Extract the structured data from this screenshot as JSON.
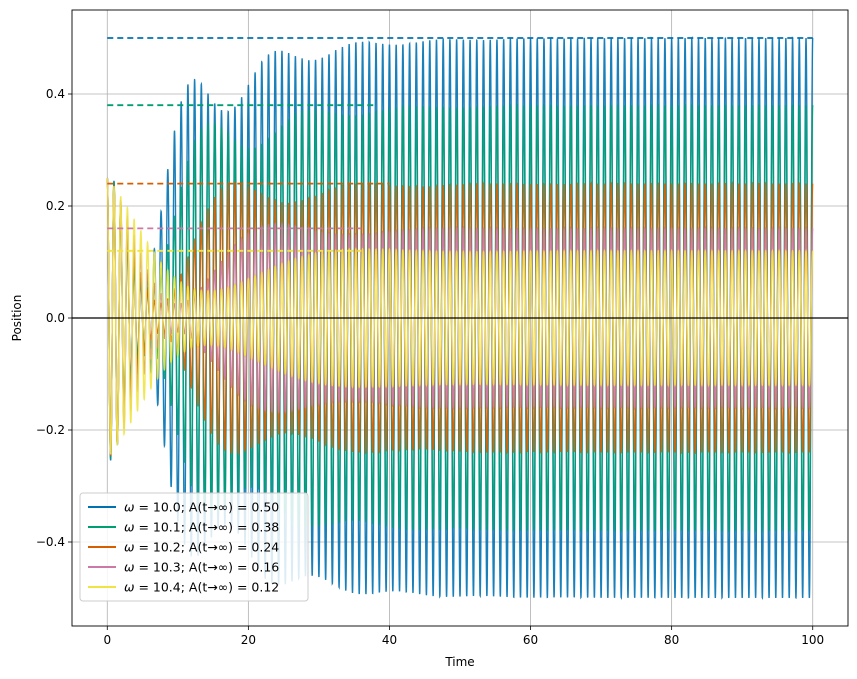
{
  "chart_data": {
    "type": "line",
    "title": "",
    "xlabel": "Time",
    "ylabel": "Position",
    "xlim": [
      -5,
      105
    ],
    "ylim": [
      -0.55,
      0.55
    ],
    "x_ticks": [
      0,
      20,
      40,
      60,
      80,
      100
    ],
    "y_ticks": [
      -0.4,
      -0.2,
      0.0,
      0.2,
      0.4
    ],
    "x_tick_labels": [
      "0",
      "20",
      "40",
      "60",
      "80",
      "100"
    ],
    "y_tick_labels": [
      "−0.4",
      "−0.2",
      "0.0",
      "0.2",
      "0.4"
    ],
    "grid": true,
    "zero_line": 0.0,
    "legend_position": "lower-left",
    "time_range": [
      0,
      100
    ],
    "initial_value": 0.25,
    "transient_damping_rate": 0.1,
    "display_frequency": 1.05,
    "series": [
      {
        "omega": "10.0",
        "legend_label": "= 10.0; A(t→∞) = 0.50",
        "steady_amplitude": 0.5,
        "color": "#0072b2",
        "dashed_level_end": 100
      },
      {
        "omega": "10.1",
        "legend_label": "= 10.1; A(t→∞) = 0.38",
        "steady_amplitude": 0.38,
        "color": "#009e73",
        "dashed_level_end": 38
      },
      {
        "omega": "10.2",
        "legend_label": "= 10.2; A(t→∞) = 0.24",
        "steady_amplitude": 0.24,
        "color": "#d55e00",
        "dashed_level_end": 40
      },
      {
        "omega": "10.3",
        "legend_label": "= 10.3; A(t→∞) = 0.16",
        "steady_amplitude": 0.16,
        "color": "#cc79a7",
        "dashed_level_end": 36
      },
      {
        "omega": "10.4",
        "legend_label": "= 10.4; A(t→∞) = 0.12",
        "steady_amplitude": 0.12,
        "color": "#f0e442",
        "dashed_level_end": 36
      }
    ]
  }
}
